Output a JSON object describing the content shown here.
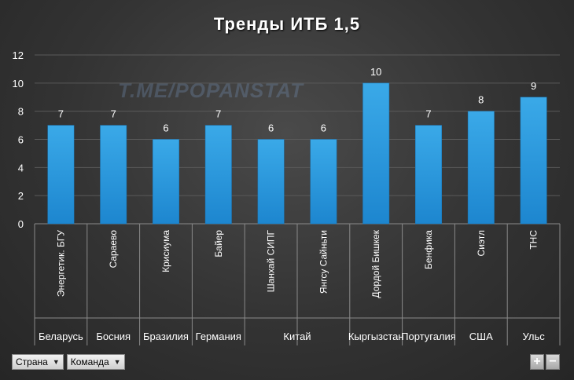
{
  "chart_data": {
    "type": "bar",
    "title": "Тренды  ИТБ 1,5",
    "watermark": "T.ME/POPANSTAT",
    "ylim": [
      0,
      12
    ],
    "yticks": [
      0,
      2,
      4,
      6,
      8,
      10,
      12
    ],
    "grid": true,
    "bar_color": "#2f9fe0",
    "categories": [
      "Энергетик. БГУ",
      "Сараево",
      "Крисиума",
      "Байер",
      "Шанхай СИПГ",
      "Янгсу Сайньти",
      "Дордой Бишкек",
      "Бенфика",
      "Сиэтл",
      "ТНС"
    ],
    "values": [
      7,
      7,
      6,
      7,
      6,
      6,
      10,
      7,
      8,
      9
    ],
    "groups": [
      {
        "label": "Беларусь",
        "span": 1
      },
      {
        "label": "Босния",
        "span": 1
      },
      {
        "label": "Бразилия",
        "span": 1
      },
      {
        "label": "Германия",
        "span": 1
      },
      {
        "label": "Китай",
        "span": 2
      },
      {
        "label": "Кыргызстан",
        "span": 1
      },
      {
        "label": "Португалия",
        "span": 1
      },
      {
        "label": "США",
        "span": 1
      },
      {
        "label": "Ульс",
        "span": 1
      }
    ]
  },
  "filters": {
    "country_label": "Страна",
    "team_label": "Команда",
    "plus": "+",
    "minus": "−"
  }
}
